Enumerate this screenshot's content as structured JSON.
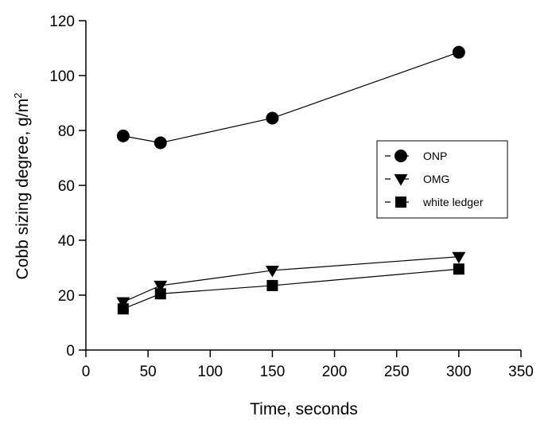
{
  "chart_data": {
    "type": "line",
    "xlabel": "Time, seconds",
    "ylabel_main": "Cobb sizing degree, g/m",
    "ylabel_sup": "2",
    "xlim": [
      0,
      350
    ],
    "ylim": [
      0,
      120
    ],
    "xticks": [
      "0",
      "50",
      "100",
      "150",
      "200",
      "250",
      "300",
      "350"
    ],
    "yticks": [
      "0",
      "20",
      "40",
      "60",
      "80",
      "100",
      "120"
    ],
    "grid": false,
    "legend_position": "right",
    "x": [
      30,
      60,
      150,
      300
    ],
    "series": [
      {
        "name": "ONP",
        "marker": "circle",
        "values": [
          78,
          75.5,
          84.5,
          108.5
        ]
      },
      {
        "name": "OMG",
        "marker": "triangle-down",
        "values": [
          17.5,
          23.5,
          29,
          34
        ]
      },
      {
        "name": "white ledger",
        "marker": "square",
        "values": [
          15,
          20.5,
          23.5,
          29.5
        ]
      }
    ]
  }
}
